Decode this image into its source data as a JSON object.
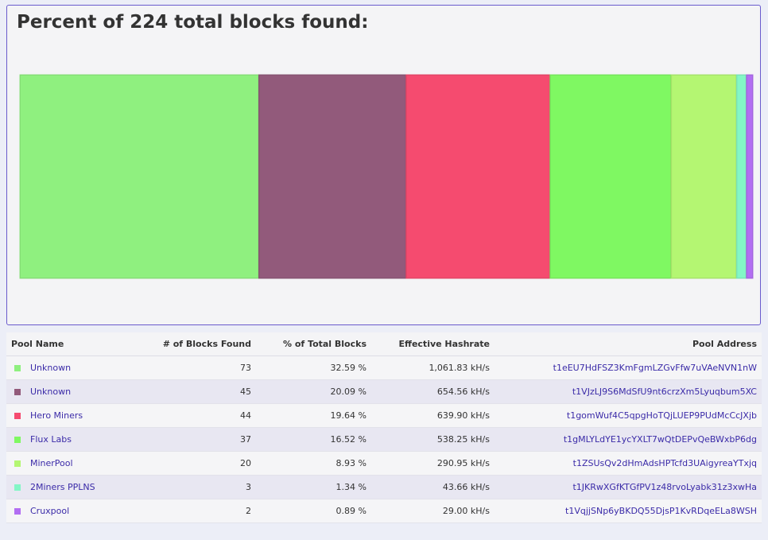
{
  "chart_data": {
    "type": "bar",
    "title": "Percent of 224 total blocks found:",
    "orientation": "horizontal-stacked",
    "total": 224,
    "series": [
      {
        "name": "Unknown",
        "value": 32.59,
        "color": "#8ff07f"
      },
      {
        "name": "Unknown",
        "value": 20.09,
        "color": "#925a7b"
      },
      {
        "name": "Hero Miners",
        "value": 19.64,
        "color": "#f54b6f"
      },
      {
        "name": "Flux Labs",
        "value": 16.52,
        "color": "#7ff862"
      },
      {
        "name": "MinerPool",
        "value": 8.93,
        "color": "#b4f672"
      },
      {
        "name": "2Miners PPLNS",
        "value": 1.34,
        "color": "#83f6c6"
      },
      {
        "name": "Cruxpool",
        "value": 0.89,
        "color": "#b26ef2"
      }
    ]
  },
  "table": {
    "headers": {
      "pool": "Pool Name",
      "blocks": "# of Blocks Found",
      "percent": "% of Total Blocks",
      "hashrate": "Effective Hashrate",
      "address": "Pool Address"
    },
    "rows": [
      {
        "name": "Unknown",
        "blocks": "73",
        "percent": "32.59 %",
        "hashrate": "1,061.83 kH/s",
        "address": "t1eEU7HdFSZ3KmFgmLZGvFfw7uVAeNVN1nW",
        "color": "#8ff07f"
      },
      {
        "name": "Unknown",
        "blocks": "45",
        "percent": "20.09 %",
        "hashrate": "654.56 kH/s",
        "address": "t1VJzLJ9S6MdSfU9nt6crzXm5Lyuqbum5XC",
        "color": "#925a7b"
      },
      {
        "name": "Hero Miners",
        "blocks": "44",
        "percent": "19.64 %",
        "hashrate": "639.90 kH/s",
        "address": "t1gomWuf4C5qpgHoTQjLUEP9PUdMcCcJXjb",
        "color": "#f54b6f"
      },
      {
        "name": "Flux Labs",
        "blocks": "37",
        "percent": "16.52 %",
        "hashrate": "538.25 kH/s",
        "address": "t1gMLYLdYE1ycYXLT7wQtDEPvQeBWxbP6dg",
        "color": "#7ff862"
      },
      {
        "name": "MinerPool",
        "blocks": "20",
        "percent": "8.93 %",
        "hashrate": "290.95 kH/s",
        "address": "t1ZSUsQv2dHmAdsHPTcfd3UAigyreaYTxjq",
        "color": "#b4f672"
      },
      {
        "name": "2Miners PPLNS",
        "blocks": "3",
        "percent": "1.34 %",
        "hashrate": "43.66 kH/s",
        "address": "t1JKRwXGfKTGfPV1z48rvoLyabk31z3xwHa",
        "color": "#83f6c6"
      },
      {
        "name": "Cruxpool",
        "blocks": "2",
        "percent": "0.89 %",
        "hashrate": "29.00 kH/s",
        "address": "t1VqjjSNp6yBKDQ55DjsP1KvRDqeELa8WSH",
        "color": "#b26ef2"
      }
    ]
  }
}
